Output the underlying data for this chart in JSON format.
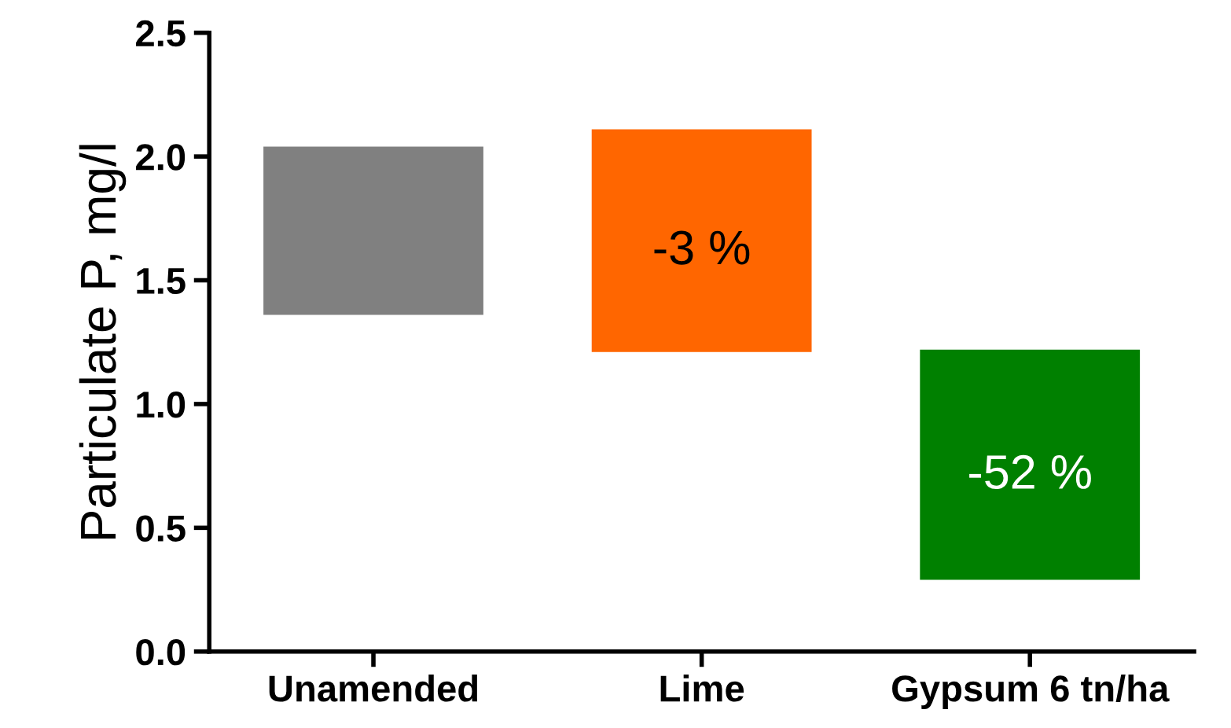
{
  "chart_data": {
    "type": "bar",
    "ylabel": "Particulate P, mg/l",
    "categories": [
      "Unamended",
      "Lime",
      "Gypsum 6 tn/ha"
    ],
    "base": [
      1.36,
      1.21,
      0.29
    ],
    "values": [
      0.68,
      0.9,
      0.93
    ],
    "colors": [
      "#808080",
      "#ff6600",
      "#008000"
    ],
    "ylim": [
      0,
      2.5
    ],
    "yticks": [
      {
        "value": 0,
        "label": "0.0"
      },
      {
        "value": 0.5,
        "label": "0.5"
      },
      {
        "value": 1.0,
        "label": "1.0"
      },
      {
        "value": 1.5,
        "label": "1.5"
      },
      {
        "value": 2.0,
        "label": "2.0"
      },
      {
        "value": 2.5,
        "label": "2.5"
      }
    ],
    "annotations": [
      "-3 %",
      "-52 %"
    ],
    "grid": false,
    "legend": false
  }
}
